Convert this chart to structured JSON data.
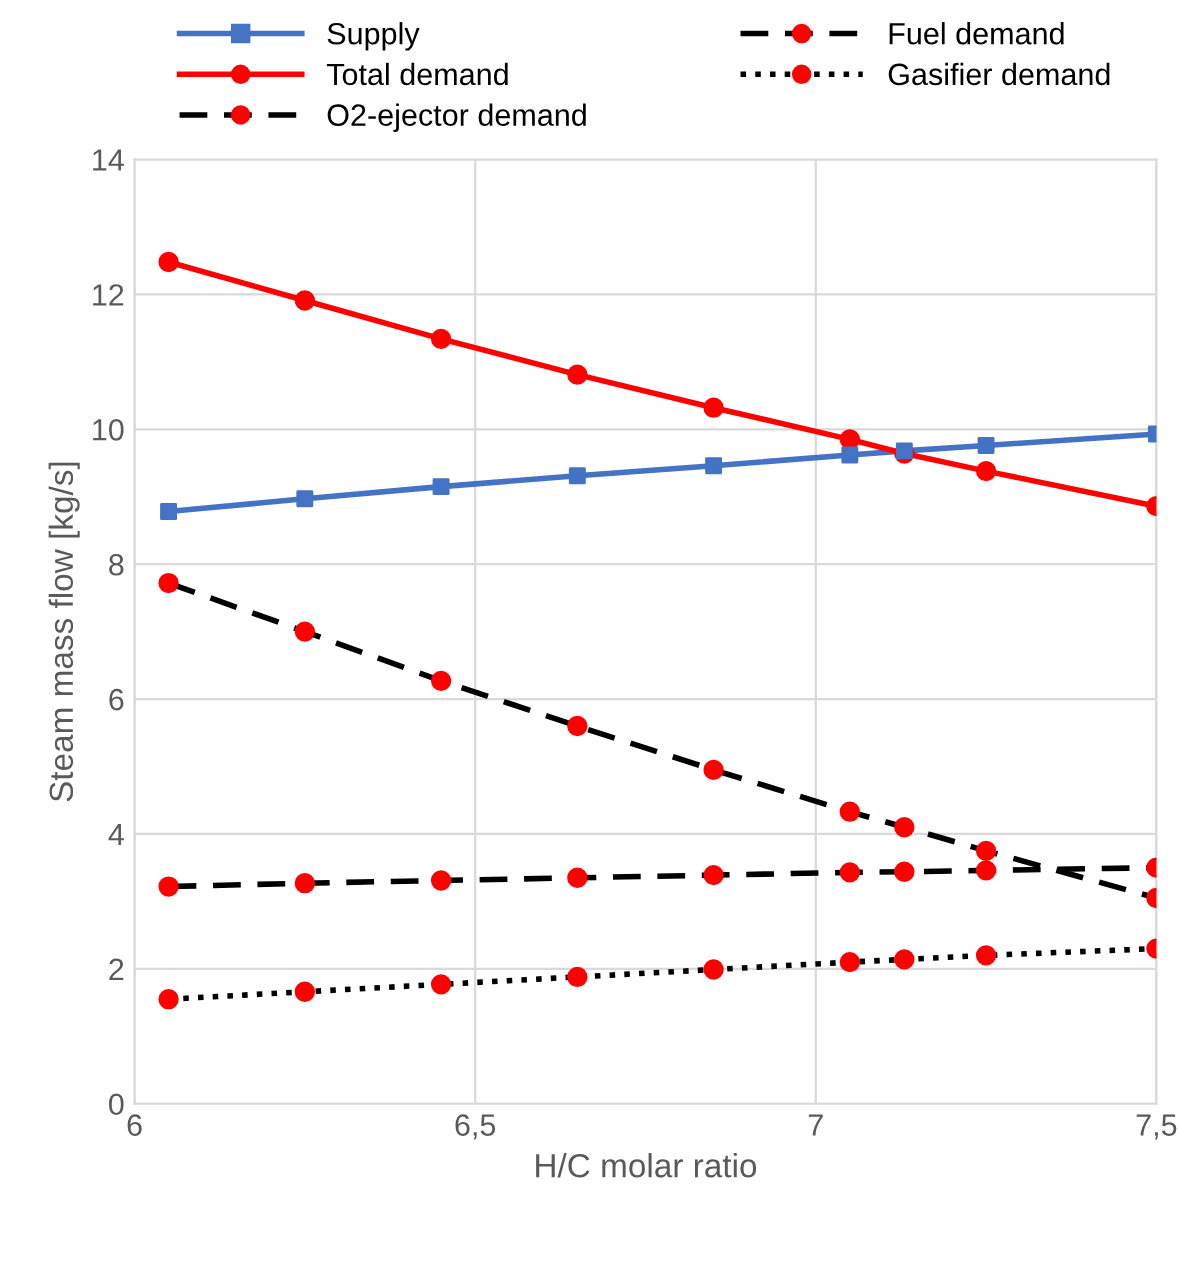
{
  "chart_data": {
    "type": "line",
    "xlabel": "H/C molar ratio",
    "ylabel": "Steam mass flow [kg/s]",
    "x": [
      6.05,
      6.25,
      6.45,
      6.65,
      6.85,
      7.05,
      7.13,
      7.25,
      7.5
    ],
    "series": [
      {
        "name": "Supply",
        "color": "#4472c4",
        "marker": "square",
        "line_style": "solid",
        "values": [
          8.78,
          8.97,
          9.15,
          9.31,
          9.46,
          9.62,
          9.68,
          9.76,
          9.93
        ]
      },
      {
        "name": "Total demand",
        "color": "#ff0000",
        "marker": "circle",
        "line_style": "solid",
        "values": [
          12.48,
          11.91,
          11.34,
          10.81,
          10.32,
          9.85,
          9.64,
          9.38,
          8.86
        ]
      },
      {
        "name": "O2-ejector demand",
        "color": "#000000",
        "colors": [
          "#ff0000",
          "#ff0000",
          "#ff0000",
          "#ff0000",
          "#ff0000",
          "#ff0000",
          "#ff0000",
          "#ff0000",
          "#ff0000"
        ],
        "marker": "circle",
        "line_style": "dashed",
        "values": [
          3.22,
          3.27,
          3.31,
          3.35,
          3.39,
          3.43,
          3.44,
          3.46,
          3.5
        ]
      },
      {
        "name": "Fuel demand",
        "color": "#000000",
        "colors": [
          "#ff0000",
          "#ff0000",
          "#ff0000",
          "#ff0000",
          "#ff0000",
          "#ff0000",
          "#ff0000",
          "#ff0000",
          "#ff0000"
        ],
        "marker": "circle",
        "line_style": "dashed",
        "values": [
          7.72,
          7.0,
          6.27,
          5.6,
          4.95,
          4.33,
          4.1,
          3.75,
          3.05
        ]
      },
      {
        "name": "Gasifier demand",
        "color": "#000000",
        "colors": [
          "#ff0000",
          "#ff0000",
          "#ff0000",
          "#ff0000",
          "#ff0000",
          "#ff0000",
          "#ff0000",
          "#ff0000",
          "#ff0000"
        ],
        "marker": "circle",
        "line_style": "dotted",
        "values": [
          1.55,
          1.66,
          1.77,
          1.88,
          1.99,
          2.1,
          2.14,
          2.2,
          2.3
        ]
      }
    ],
    "xlim": [
      6,
      7.5
    ],
    "xticks": [
      6,
      {
        "value": 6.5,
        "label": "6,5"
      },
      7,
      {
        "value": 7.5,
        "label": "7,5"
      }
    ],
    "ylim": [
      0,
      14
    ],
    "yticks": [
      0,
      2,
      4,
      6,
      8,
      10,
      12,
      14
    ],
    "grid": true,
    "legend": "top"
  }
}
